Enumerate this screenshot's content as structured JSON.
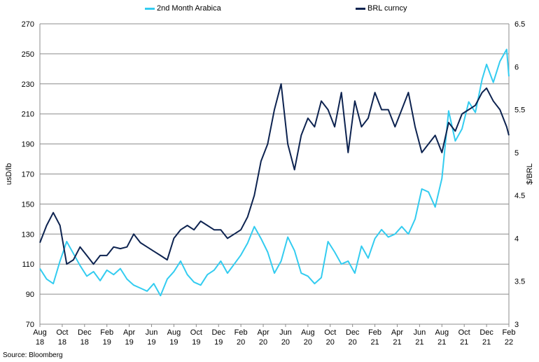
{
  "source": "Source: Bloomberg",
  "chart_data": {
    "type": "line",
    "x_tick_labels": [
      "Aug\n18",
      "Oct\n18",
      "Dec\n18",
      "Feb\n19",
      "Apr\n19",
      "Jun\n19",
      "Aug\n19",
      "Oct\n19",
      "Dec\n19",
      "Feb\n20",
      "Apr\n20",
      "Jun\n20",
      "Aug\n20",
      "Oct\n20",
      "Dec\n20",
      "Feb\n21",
      "Apr\n21",
      "Jun\n21",
      "Aug\n21",
      "Oct\n21",
      "Dec\n21",
      "Feb\n22"
    ],
    "y_left": {
      "label": "usD/lb",
      "ticks": [
        70,
        90,
        110,
        130,
        150,
        170,
        190,
        210,
        230,
        250,
        270
      ],
      "range": [
        70,
        270
      ]
    },
    "y_right": {
      "label": "$/BRL",
      "ticks": [
        "3",
        "3.5",
        "4",
        "4.5",
        "5",
        "5.5",
        "6",
        "6.5"
      ],
      "range": [
        3,
        6.5
      ]
    },
    "grid": "horizontal",
    "legend_placement": "top-center",
    "series": [
      {
        "name": "2nd Month Arabica",
        "axis": "left",
        "color": "#33ccf0",
        "x": [
          0,
          0.3,
          0.6,
          0.9,
          1.2,
          1.5,
          1.8,
          2.1,
          2.4,
          2.7,
          3.0,
          3.3,
          3.6,
          3.9,
          4.2,
          4.5,
          4.8,
          5.1,
          5.4,
          5.7,
          6.0,
          6.3,
          6.6,
          6.9,
          7.2,
          7.5,
          7.8,
          8.1,
          8.4,
          8.7,
          9.0,
          9.3,
          9.6,
          9.9,
          10.2,
          10.5,
          10.8,
          11.1,
          11.4,
          11.7,
          12.0,
          12.3,
          12.6,
          12.9,
          13.2,
          13.5,
          13.8,
          14.1,
          14.4,
          14.7,
          15.0,
          15.3,
          15.6,
          15.9,
          16.2,
          16.5,
          16.8,
          17.1,
          17.4,
          17.7,
          18.0,
          18.3,
          18.6,
          18.9,
          19.2,
          19.5,
          19.8,
          20.0,
          20.3,
          20.6,
          20.9,
          21.0
        ],
        "values": [
          107,
          100,
          97,
          112,
          125,
          117,
          109,
          102,
          105,
          99,
          106,
          103,
          107,
          100,
          96,
          94,
          92,
          97,
          89,
          100,
          105,
          112,
          103,
          98,
          96,
          103,
          106,
          112,
          104,
          110,
          116,
          124,
          135,
          127,
          118,
          104,
          112,
          128,
          119,
          104,
          102,
          97,
          101,
          125,
          118,
          110,
          112,
          104,
          122,
          114,
          127,
          133,
          128,
          130,
          135,
          130,
          140,
          160,
          158,
          148,
          167,
          212,
          192,
          200,
          218,
          211,
          233,
          243,
          231,
          245,
          253,
          235
        ]
      },
      {
        "name": "BRL curncy",
        "axis": "right",
        "color": "#0d2350",
        "x": [
          0,
          0.3,
          0.6,
          0.9,
          1.2,
          1.5,
          1.8,
          2.1,
          2.4,
          2.7,
          3.0,
          3.3,
          3.6,
          3.9,
          4.2,
          4.5,
          4.8,
          5.1,
          5.4,
          5.7,
          6.0,
          6.3,
          6.6,
          6.9,
          7.2,
          7.5,
          7.8,
          8.1,
          8.4,
          8.7,
          9.0,
          9.3,
          9.6,
          9.9,
          10.2,
          10.5,
          10.8,
          11.1,
          11.4,
          11.7,
          12.0,
          12.3,
          12.6,
          12.9,
          13.2,
          13.5,
          13.8,
          14.1,
          14.4,
          14.7,
          15.0,
          15.3,
          15.6,
          15.9,
          16.2,
          16.5,
          16.8,
          17.1,
          17.4,
          17.7,
          18.0,
          18.3,
          18.6,
          18.9,
          19.2,
          19.5,
          19.8,
          20.0,
          20.3,
          20.6,
          20.9,
          21.0
        ],
        "values": [
          3.95,
          4.15,
          4.3,
          4.15,
          3.7,
          3.75,
          3.9,
          3.8,
          3.7,
          3.8,
          3.8,
          3.9,
          3.88,
          3.9,
          4.05,
          3.95,
          3.9,
          3.85,
          3.8,
          3.75,
          4.0,
          4.1,
          4.15,
          4.1,
          4.2,
          4.15,
          4.1,
          4.1,
          4.0,
          4.05,
          4.1,
          4.25,
          4.5,
          4.9,
          5.1,
          5.5,
          5.8,
          5.1,
          4.8,
          5.2,
          5.4,
          5.3,
          5.6,
          5.5,
          5.3,
          5.7,
          5.0,
          5.6,
          5.3,
          5.4,
          5.7,
          5.5,
          5.5,
          5.3,
          5.5,
          5.7,
          5.3,
          5.0,
          5.1,
          5.2,
          5.0,
          5.35,
          5.25,
          5.45,
          5.5,
          5.55,
          5.7,
          5.75,
          5.6,
          5.5,
          5.3,
          5.2
        ]
      }
    ]
  }
}
